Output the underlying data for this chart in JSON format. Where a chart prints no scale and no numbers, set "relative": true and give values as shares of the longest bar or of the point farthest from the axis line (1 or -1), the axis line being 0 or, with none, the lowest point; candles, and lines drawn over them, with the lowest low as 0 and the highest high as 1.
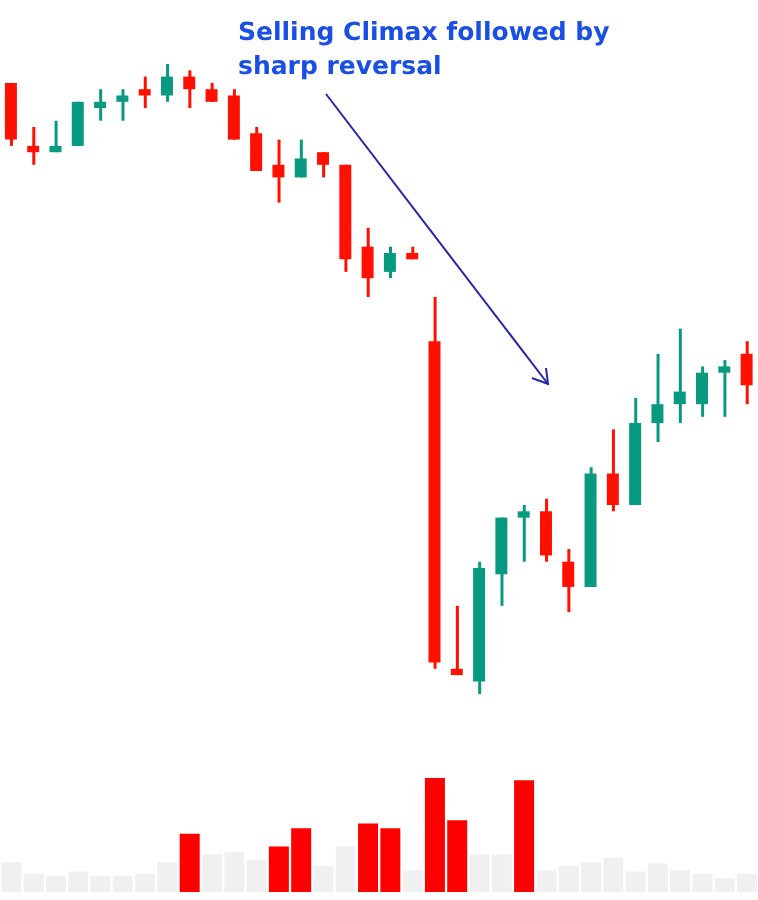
{
  "chart_data": [
    {
      "type": "candlestick",
      "relative": true,
      "categories": [
        null,
        null,
        null,
        null,
        null,
        null,
        null,
        null,
        null,
        null,
        null,
        null,
        null,
        null,
        null,
        null,
        null,
        null,
        null,
        null,
        null,
        null,
        null,
        null,
        null,
        null,
        null,
        null,
        null,
        null,
        null,
        null,
        null,
        null
      ],
      "ohlc": [
        [
          0.97,
          0.97,
          0.87,
          0.88
        ],
        [
          0.87,
          0.9,
          0.84,
          0.86
        ],
        [
          0.86,
          0.91,
          0.86,
          0.87
        ],
        [
          0.87,
          0.94,
          0.87,
          0.94
        ],
        [
          0.93,
          0.96,
          0.91,
          0.94
        ],
        [
          0.94,
          0.96,
          0.91,
          0.95
        ],
        [
          0.96,
          0.98,
          0.93,
          0.95
        ],
        [
          0.95,
          1,
          0.94,
          0.98
        ],
        [
          0.98,
          0.99,
          0.93,
          0.96
        ],
        [
          0.96,
          0.97,
          0.94,
          0.94
        ],
        [
          0.95,
          0.96,
          0.88,
          0.88
        ],
        [
          0.89,
          0.9,
          0.83,
          0.83
        ],
        [
          0.84,
          0.88,
          0.78,
          0.82
        ],
        [
          0.82,
          0.88,
          0.82,
          0.85
        ],
        [
          0.86,
          0.86,
          0.82,
          0.84
        ],
        [
          0.84,
          0.84,
          0.67,
          0.69
        ],
        [
          0.71,
          0.74,
          0.63,
          0.66
        ],
        [
          0.67,
          0.71,
          0.66,
          0.7
        ],
        [
          0.7,
          0.71,
          0.69,
          0.69
        ],
        [
          0.56,
          0.63,
          0.04,
          0.05
        ],
        [
          0.04,
          0.14,
          0.03,
          0.03
        ],
        [
          0.02,
          0.21,
          0,
          0.2
        ],
        [
          0.19,
          0.28,
          0.14,
          0.28
        ],
        [
          0.28,
          0.3,
          0.21,
          0.29
        ],
        [
          0.29,
          0.31,
          0.21,
          0.22
        ],
        [
          0.21,
          0.23,
          0.13,
          0.17
        ],
        [
          0.17,
          0.36,
          0.17,
          0.35
        ],
        [
          0.35,
          0.42,
          0.29,
          0.3
        ],
        [
          0.3,
          0.47,
          0.3,
          0.43
        ],
        [
          0.43,
          0.54,
          0.4,
          0.46
        ],
        [
          0.46,
          0.58,
          0.43,
          0.48
        ],
        [
          0.46,
          0.52,
          0.44,
          0.51
        ],
        [
          0.51,
          0.53,
          0.44,
          0.52
        ],
        [
          0.54,
          0.56,
          0.46,
          0.49
        ]
      ],
      "colors": [
        "#ff1000",
        "#ff1000",
        "#089981",
        "#089981",
        "#089981",
        "#089981",
        "#ff1000",
        "#089981",
        "#ff1000",
        "#ff1000",
        "#ff1000",
        "#ff1000",
        "#ff1000",
        "#089981",
        "#ff1000",
        "#ff1000",
        "#ff1000",
        "#089981",
        "#ff1000",
        "#ff1000",
        "#ff1000",
        "#089981",
        "#089981",
        "#089981",
        "#ff1000",
        "#ff1000",
        "#089981",
        "#ff1000",
        "#089981",
        "#089981",
        "#089981",
        "#089981",
        "#089981",
        "#ff1000"
      ],
      "annotations": [
        "Selling Climax followed by sharp reversal"
      ]
    },
    {
      "type": "bar",
      "relative": true,
      "categories": [
        null,
        null,
        null,
        null,
        null,
        null,
        null,
        null,
        null,
        null,
        null,
        null,
        null,
        null,
        null,
        null,
        null,
        null,
        null,
        null,
        null,
        null,
        null,
        null,
        null,
        null,
        null,
        null,
        null,
        null,
        null,
        null,
        null,
        null
      ],
      "values": [
        0.26,
        0.16,
        0.14,
        0.18,
        0.14,
        0.14,
        0.16,
        0.26,
        0.51,
        0.33,
        0.35,
        0.28,
        0.4,
        0.56,
        0.23,
        0.4,
        0.6,
        0.56,
        0.19,
        1,
        0.63,
        0.33,
        0.33,
        0.98,
        0.19,
        0.23,
        0.26,
        0.3,
        0.18,
        0.25,
        0.19,
        0.16,
        0.12,
        0.16
      ],
      "colors": [
        "#f0f0f0",
        "#f0f0f0",
        "#f0f0f0",
        "#f0f0f0",
        "#f0f0f0",
        "#f0f0f0",
        "#f0f0f0",
        "#f0f0f0",
        "#ff0000",
        "#f0f0f0",
        "#f0f0f0",
        "#f0f0f0",
        "#ff0000",
        "#ff0000",
        "#f0f0f0",
        "#f0f0f0",
        "#ff0000",
        "#ff0000",
        "#f0f0f0",
        "#ff0000",
        "#ff0000",
        "#f0f0f0",
        "#f0f0f0",
        "#ff0000",
        "#f0f0f0",
        "#f0f0f0",
        "#f0f0f0",
        "#f0f0f0",
        "#f0f0f0",
        "#f0f0f0",
        "#f0f0f0",
        "#f0f0f0",
        "#f0f0f0",
        "#f0f0f0"
      ]
    }
  ]
}
